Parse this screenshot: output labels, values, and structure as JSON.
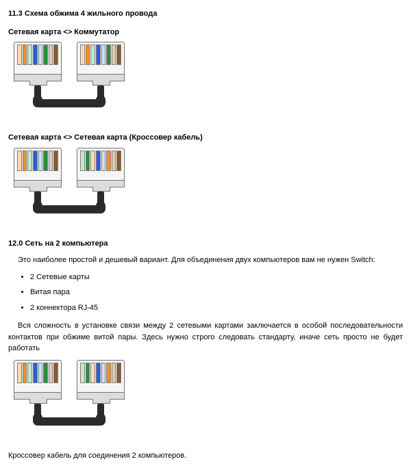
{
  "colors": {
    "wire_white": "#ffffff",
    "wire_orange": "#ff8c1a",
    "wire_green": "#2e8b3d",
    "wire_blue": "#2a5fd8",
    "wire_brown": "#8b5a2b",
    "wire_pale_orange": "#ffd9b3",
    "wire_pale_green": "#c8e6c9",
    "wire_pale_blue": "#cfe0ff",
    "wire_pale_brown": "#e0ccb3",
    "plug_body": "#f5f5f5",
    "plug_edge": "#757575",
    "cable": "#2b2b2b",
    "text": "#000000",
    "background": "#ffffff"
  },
  "section_11_3": {
    "heading": "11.3 Схема обжима 4 жильного провода",
    "diagram_a": {
      "label": "Сетевая карта <> Коммутатор",
      "left_plug_wires": [
        "wire_pale_orange",
        "wire_orange",
        "wire_pale_green",
        "wire_blue",
        "wire_pale_blue",
        "wire_green",
        "wire_pale_brown",
        "wire_brown"
      ],
      "right_plug_wires": [
        "wire_pale_orange",
        "wire_orange",
        "wire_pale_green",
        "wire_blue",
        "wire_pale_blue",
        "wire_green",
        "wire_pale_brown",
        "wire_brown"
      ]
    },
    "diagram_b": {
      "label": "Сетевая карта <> Сетевая карта (Кроссовер кабель)",
      "left_plug_wires": [
        "wire_pale_orange",
        "wire_orange",
        "wire_pale_green",
        "wire_blue",
        "wire_pale_blue",
        "wire_green",
        "wire_pale_brown",
        "wire_brown"
      ],
      "right_plug_wires": [
        "wire_pale_green",
        "wire_green",
        "wire_pale_orange",
        "wire_blue",
        "wire_pale_blue",
        "wire_orange",
        "wire_pale_brown",
        "wire_brown"
      ]
    }
  },
  "section_12_0": {
    "heading": "12.0 Сеть на 2 компьютера",
    "intro": "Это наиболее простой и дешевый вариант. Для объединения двух компьютеров вам не нужен Switch:",
    "items": [
      "2 Сетевые карты",
      "Витая пара",
      "2 коннектора RJ-45"
    ],
    "para": "Вся сложность в установке связи между 2 сетевыми картами заключается в особой последовательности контактов при обжиме витой пары. Здесь нужно строго следовать стандарту, иначе сеть просто не будет работать",
    "diagram": {
      "left_plug_wires": [
        "wire_pale_orange",
        "wire_orange",
        "wire_pale_green",
        "wire_blue",
        "wire_pale_blue",
        "wire_green",
        "wire_pale_brown",
        "wire_brown"
      ],
      "right_plug_wires": [
        "wire_pale_green",
        "wire_green",
        "wire_pale_orange",
        "wire_blue",
        "wire_pale_blue",
        "wire_orange",
        "wire_pale_brown",
        "wire_brown"
      ]
    },
    "caption": "Кроссовер кабель для соединения 2 компьютеров."
  }
}
